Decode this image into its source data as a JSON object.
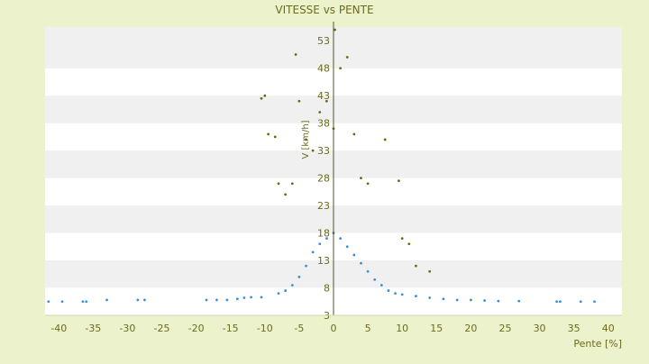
{
  "chart_data": {
    "type": "scatter",
    "title": "VITESSE vs PENTE",
    "xlabel": "Pente [%]",
    "ylabel": "V [km/h]",
    "xlim": [
      -42,
      42
    ],
    "ylim": [
      3,
      55.5
    ],
    "x_ticks": [
      -40,
      -35,
      -30,
      -25,
      -20,
      -15,
      -10,
      -5,
      0,
      5,
      10,
      15,
      20,
      25,
      30,
      35,
      40
    ],
    "y_ticks": [
      3,
      8,
      13,
      18,
      23,
      28,
      33,
      38,
      43,
      48,
      53
    ],
    "grid": "horizontal-bands",
    "legend": "none",
    "colors": {
      "background": "#ecf2cc",
      "band_light": "#ffffff",
      "band_dark": "#f0f0f0",
      "text": "#6b6b1e",
      "axis": "#555520"
    },
    "series": [
      {
        "color": "#3a8fd6",
        "points": [
          [
            -41.5,
            5.5
          ],
          [
            -39.5,
            5.5
          ],
          [
            -36.5,
            5.5
          ],
          [
            -36.0,
            5.5
          ],
          [
            -33.0,
            5.8
          ],
          [
            -28.5,
            5.8
          ],
          [
            -27.5,
            5.8
          ],
          [
            -18.5,
            5.8
          ],
          [
            -17.0,
            5.8
          ],
          [
            -15.5,
            5.8
          ],
          [
            -14.0,
            6.0
          ],
          [
            -13.0,
            6.2
          ],
          [
            -12.0,
            6.3
          ],
          [
            -10.5,
            6.3
          ],
          [
            -8.0,
            7.0
          ],
          [
            -7.0,
            7.5
          ],
          [
            -6.0,
            8.5
          ],
          [
            -5.0,
            10.0
          ],
          [
            -4.0,
            12.0
          ],
          [
            -3.0,
            14.5
          ],
          [
            -2.0,
            16.0
          ],
          [
            -1.0,
            17.0
          ],
          [
            0.0,
            18.0
          ],
          [
            1.0,
            17.0
          ],
          [
            2.0,
            15.5
          ],
          [
            3.0,
            14.0
          ],
          [
            4.0,
            12.5
          ],
          [
            5.0,
            11.0
          ],
          [
            6.0,
            9.5
          ],
          [
            7.0,
            8.5
          ],
          [
            8.0,
            7.5
          ],
          [
            9.0,
            7.0
          ],
          [
            10.0,
            6.8
          ],
          [
            12.0,
            6.5
          ],
          [
            14.0,
            6.2
          ],
          [
            16.0,
            6.0
          ],
          [
            18.0,
            5.8
          ],
          [
            20.0,
            5.8
          ],
          [
            22.0,
            5.7
          ],
          [
            24.0,
            5.6
          ],
          [
            27.0,
            5.6
          ],
          [
            32.5,
            5.5
          ],
          [
            33.0,
            5.5
          ],
          [
            36.0,
            5.5
          ],
          [
            38.0,
            5.5
          ]
        ]
      },
      {
        "color": "#6b6b10",
        "points": [
          [
            -10.5,
            42.5
          ],
          [
            -10.0,
            43.0
          ],
          [
            -9.5,
            36.0
          ],
          [
            -8.5,
            35.5
          ],
          [
            -8.0,
            27.0
          ],
          [
            -7.0,
            25.0
          ],
          [
            -6.0,
            27.0
          ],
          [
            -5.5,
            50.5
          ],
          [
            -5.0,
            42.0
          ],
          [
            -4.0,
            35.0
          ],
          [
            -3.0,
            33.0
          ],
          [
            -2.0,
            40.0
          ],
          [
            -1.0,
            42.0
          ],
          [
            0.0,
            37.0
          ],
          [
            0.2,
            55.0
          ],
          [
            1.0,
            48.0
          ],
          [
            2.0,
            50.0
          ],
          [
            3.0,
            36.0
          ],
          [
            4.0,
            28.0
          ],
          [
            5.0,
            27.0
          ],
          [
            7.5,
            35.0
          ],
          [
            9.5,
            27.5
          ],
          [
            10.0,
            17.0
          ],
          [
            11.0,
            16.0
          ],
          [
            12.0,
            12.0
          ],
          [
            14.0,
            11.0
          ]
        ]
      }
    ]
  }
}
